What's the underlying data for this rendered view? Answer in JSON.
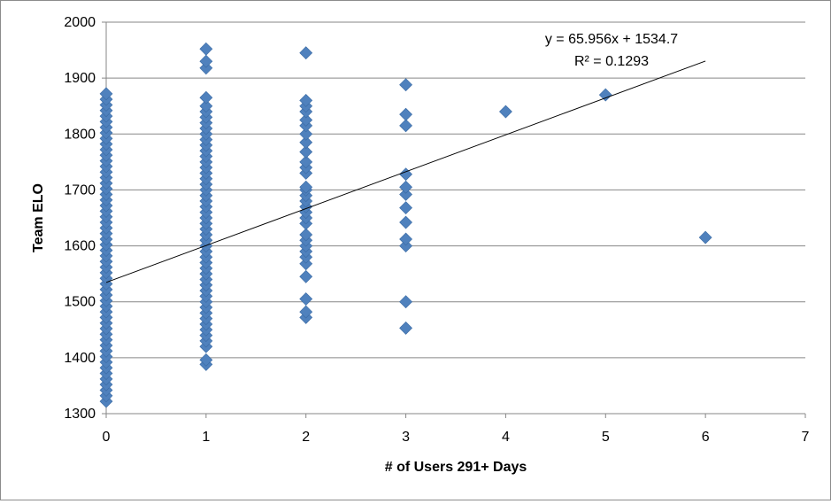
{
  "chart_data": {
    "type": "scatter",
    "title": "",
    "xlabel": "# of Users 291+ Days",
    "ylabel": "Team ELO",
    "xlim": [
      0,
      7
    ],
    "ylim": [
      1300,
      2000
    ],
    "x_ticks": [
      0,
      1,
      2,
      3,
      4,
      5,
      6,
      7
    ],
    "y_ticks": [
      1300,
      1400,
      1500,
      1600,
      1700,
      1800,
      1900,
      2000
    ],
    "x_tick_labels": [
      "0",
      "1",
      "2",
      "3",
      "4",
      "5",
      "6",
      "7"
    ],
    "y_tick_labels": [
      "1300",
      "1400",
      "1500",
      "1600",
      "1700",
      "1800",
      "1900",
      "2000"
    ],
    "grid": "horizontal",
    "legend": "none",
    "marker": "diamond",
    "marker_color": "#4f81bd",
    "series": [
      {
        "points": [
          [
            0,
            1322
          ],
          [
            0,
            1332
          ],
          [
            0,
            1342
          ],
          [
            0,
            1352
          ],
          [
            0,
            1362
          ],
          [
            0,
            1372
          ],
          [
            0,
            1382
          ],
          [
            0,
            1392
          ],
          [
            0,
            1402
          ],
          [
            0,
            1412
          ],
          [
            0,
            1422
          ],
          [
            0,
            1432
          ],
          [
            0,
            1442
          ],
          [
            0,
            1452
          ],
          [
            0,
            1462
          ],
          [
            0,
            1472
          ],
          [
            0,
            1482
          ],
          [
            0,
            1492
          ],
          [
            0,
            1502
          ],
          [
            0,
            1512
          ],
          [
            0,
            1522
          ],
          [
            0,
            1532
          ],
          [
            0,
            1542
          ],
          [
            0,
            1552
          ],
          [
            0,
            1562
          ],
          [
            0,
            1572
          ],
          [
            0,
            1582
          ],
          [
            0,
            1592
          ],
          [
            0,
            1602
          ],
          [
            0,
            1612
          ],
          [
            0,
            1622
          ],
          [
            0,
            1632
          ],
          [
            0,
            1642
          ],
          [
            0,
            1652
          ],
          [
            0,
            1662
          ],
          [
            0,
            1672
          ],
          [
            0,
            1682
          ],
          [
            0,
            1692
          ],
          [
            0,
            1702
          ],
          [
            0,
            1712
          ],
          [
            0,
            1722
          ],
          [
            0,
            1732
          ],
          [
            0,
            1742
          ],
          [
            0,
            1752
          ],
          [
            0,
            1762
          ],
          [
            0,
            1772
          ],
          [
            0,
            1782
          ],
          [
            0,
            1792
          ],
          [
            0,
            1802
          ],
          [
            0,
            1812
          ],
          [
            0,
            1822
          ],
          [
            0,
            1832
          ],
          [
            0,
            1842
          ],
          [
            0,
            1852
          ],
          [
            0,
            1862
          ],
          [
            0,
            1872
          ],
          [
            1,
            1388
          ],
          [
            1,
            1396
          ],
          [
            1,
            1420
          ],
          [
            1,
            1430
          ],
          [
            1,
            1440
          ],
          [
            1,
            1450
          ],
          [
            1,
            1460
          ],
          [
            1,
            1470
          ],
          [
            1,
            1480
          ],
          [
            1,
            1490
          ],
          [
            1,
            1500
          ],
          [
            1,
            1510
          ],
          [
            1,
            1520
          ],
          [
            1,
            1530
          ],
          [
            1,
            1540
          ],
          [
            1,
            1550
          ],
          [
            1,
            1560
          ],
          [
            1,
            1570
          ],
          [
            1,
            1580
          ],
          [
            1,
            1590
          ],
          [
            1,
            1600
          ],
          [
            1,
            1610
          ],
          [
            1,
            1620
          ],
          [
            1,
            1630
          ],
          [
            1,
            1640
          ],
          [
            1,
            1650
          ],
          [
            1,
            1660
          ],
          [
            1,
            1670
          ],
          [
            1,
            1680
          ],
          [
            1,
            1690
          ],
          [
            1,
            1700
          ],
          [
            1,
            1710
          ],
          [
            1,
            1720
          ],
          [
            1,
            1730
          ],
          [
            1,
            1740
          ],
          [
            1,
            1750
          ],
          [
            1,
            1760
          ],
          [
            1,
            1770
          ],
          [
            1,
            1780
          ],
          [
            1,
            1790
          ],
          [
            1,
            1800
          ],
          [
            1,
            1810
          ],
          [
            1,
            1820
          ],
          [
            1,
            1830
          ],
          [
            1,
            1840
          ],
          [
            1,
            1850
          ],
          [
            1,
            1865
          ],
          [
            1,
            1918
          ],
          [
            1,
            1930
          ],
          [
            1,
            1952
          ],
          [
            2,
            1472
          ],
          [
            2,
            1482
          ],
          [
            2,
            1505
          ],
          [
            2,
            1545
          ],
          [
            2,
            1568
          ],
          [
            2,
            1580
          ],
          [
            2,
            1590
          ],
          [
            2,
            1600
          ],
          [
            2,
            1610
          ],
          [
            2,
            1620
          ],
          [
            2,
            1640
          ],
          [
            2,
            1650
          ],
          [
            2,
            1660
          ],
          [
            2,
            1670
          ],
          [
            2,
            1680
          ],
          [
            2,
            1690
          ],
          [
            2,
            1700
          ],
          [
            2,
            1705
          ],
          [
            2,
            1730
          ],
          [
            2,
            1740
          ],
          [
            2,
            1750
          ],
          [
            2,
            1768
          ],
          [
            2,
            1785
          ],
          [
            2,
            1800
          ],
          [
            2,
            1815
          ],
          [
            2,
            1825
          ],
          [
            2,
            1840
          ],
          [
            2,
            1850
          ],
          [
            2,
            1860
          ],
          [
            2,
            1945
          ],
          [
            3,
            1453
          ],
          [
            3,
            1500
          ],
          [
            3,
            1600
          ],
          [
            3,
            1612
          ],
          [
            3,
            1642
          ],
          [
            3,
            1668
          ],
          [
            3,
            1692
          ],
          [
            3,
            1705
          ],
          [
            3,
            1728
          ],
          [
            3,
            1815
          ],
          [
            3,
            1835
          ],
          [
            3,
            1888
          ],
          [
            4,
            1840
          ],
          [
            5,
            1870
          ],
          [
            6,
            1615
          ]
        ]
      }
    ],
    "trendline": {
      "type": "linear",
      "slope": 65.956,
      "intercept": 1534.7,
      "x_range": [
        0,
        6
      ],
      "equation_label": "y = 65.956x + 1534.7",
      "r2_label": "R² = 0.1293"
    }
  }
}
